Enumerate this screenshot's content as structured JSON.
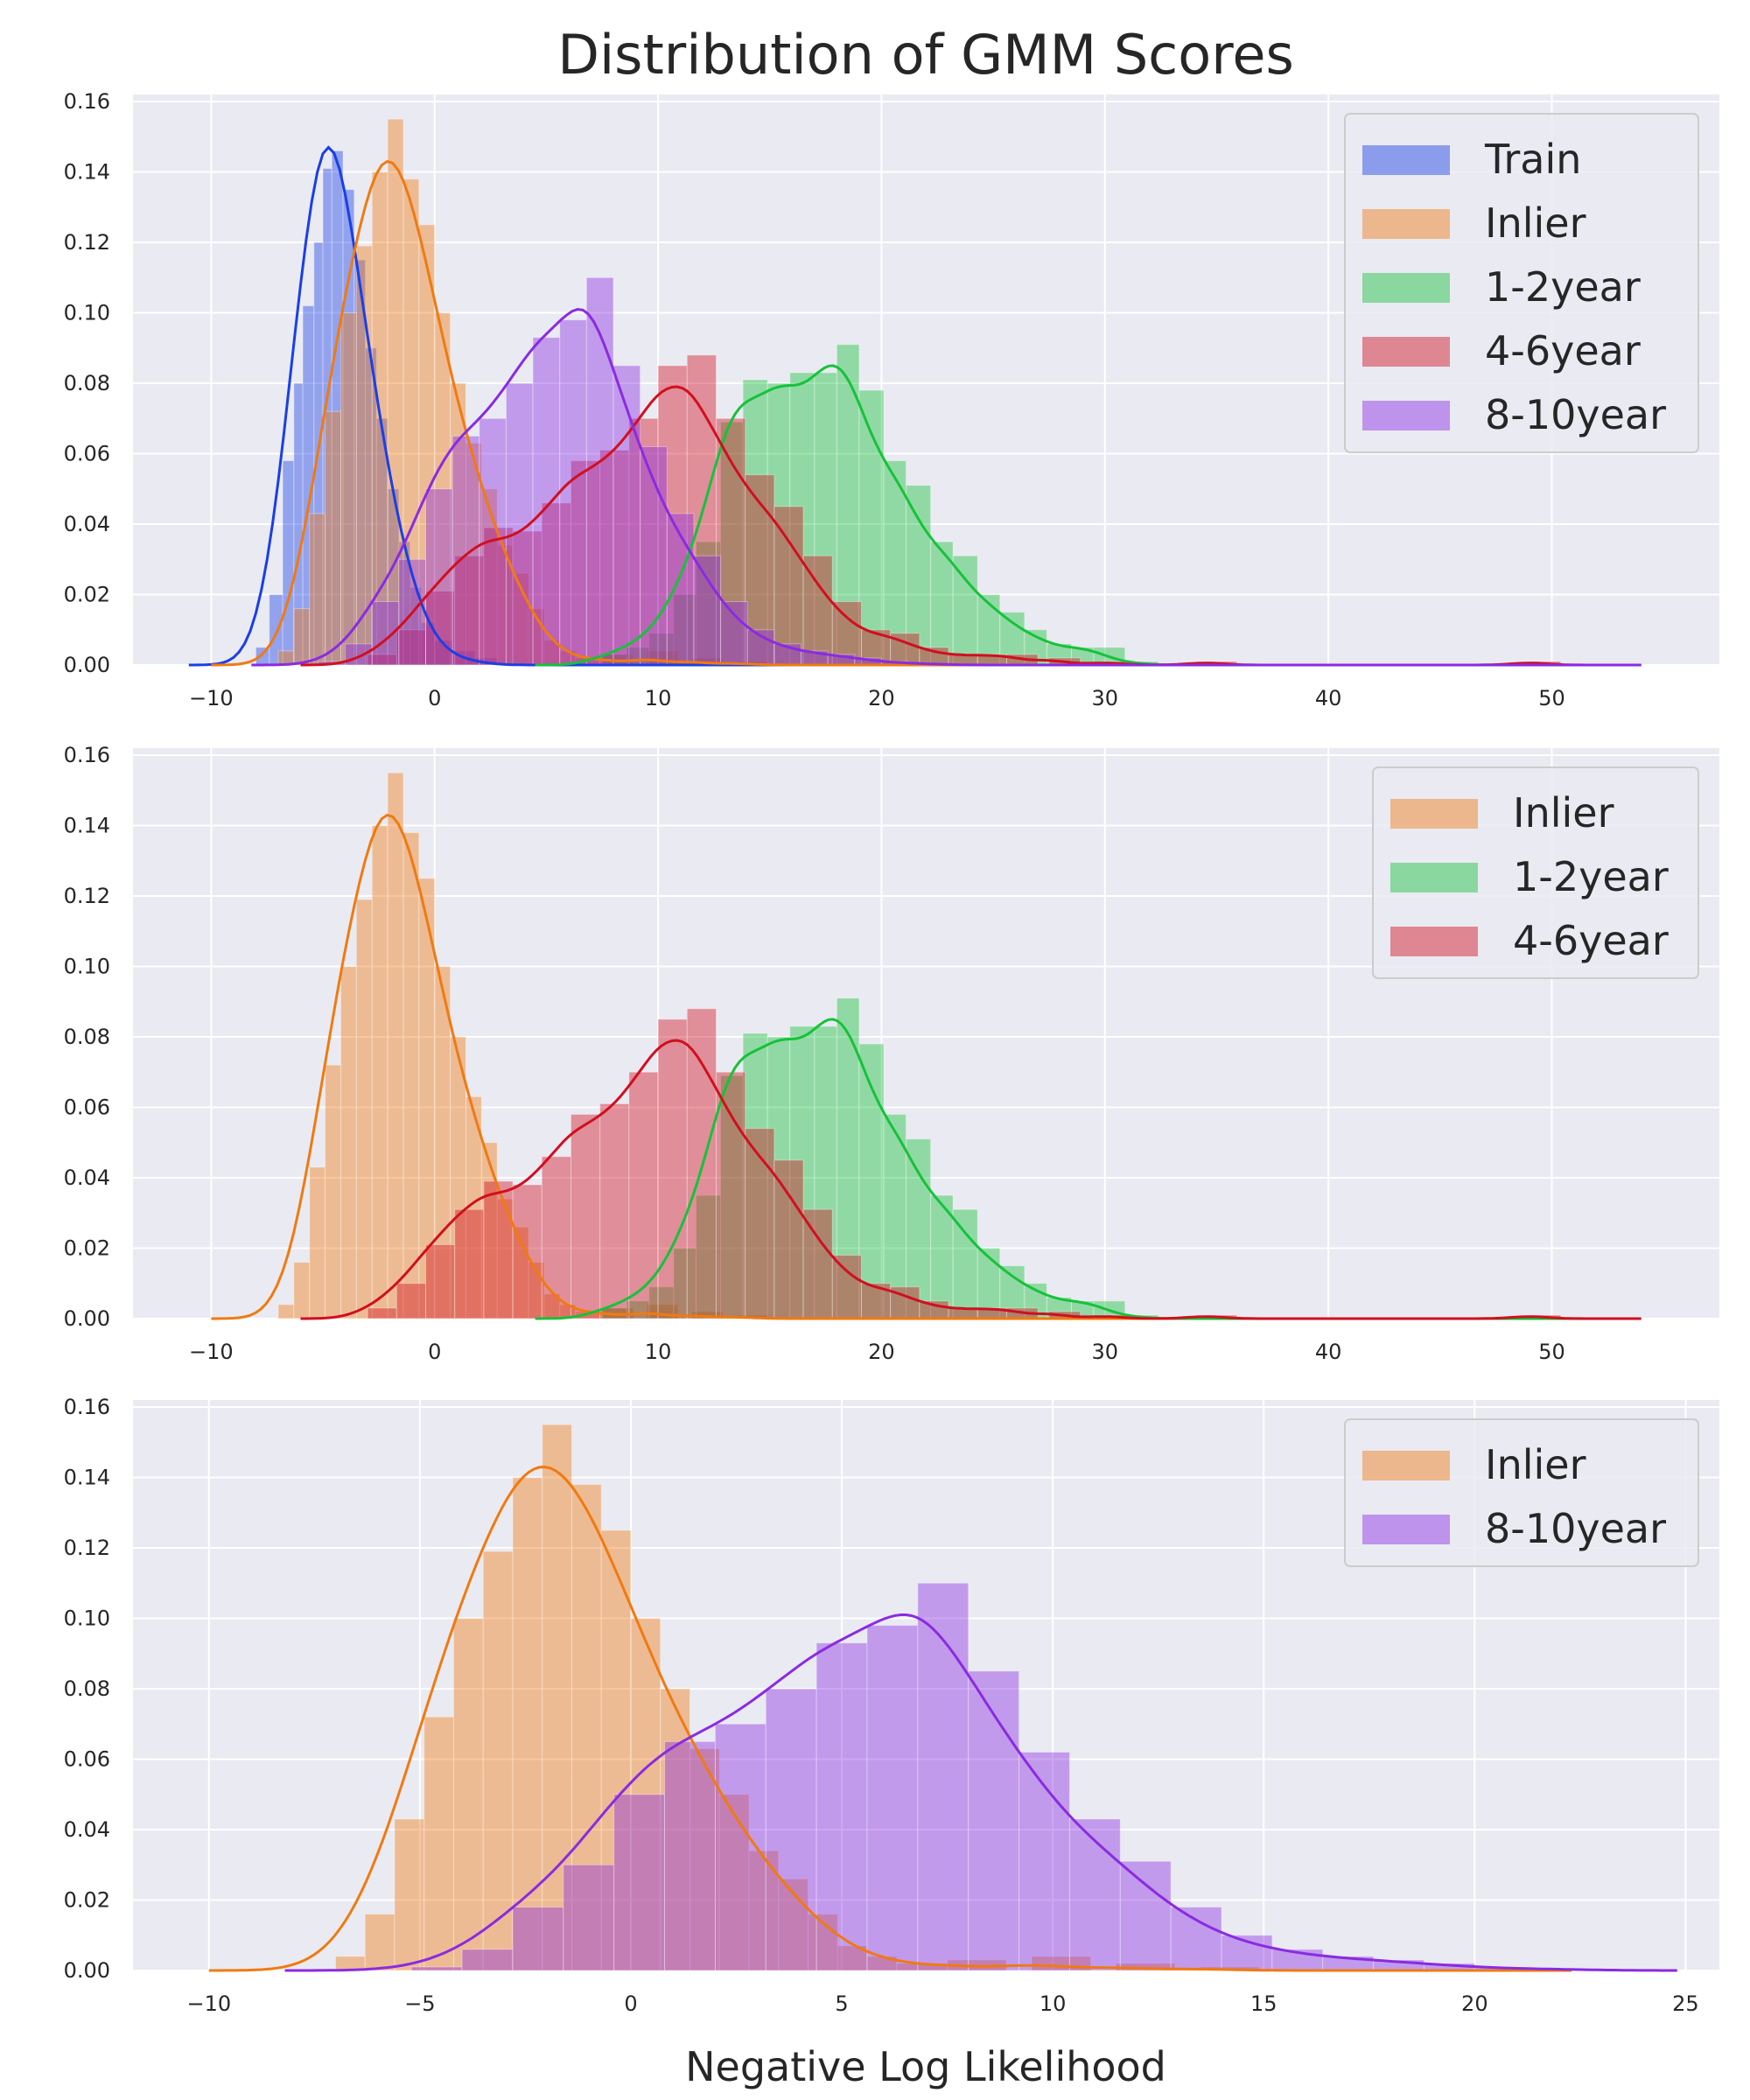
{
  "figure": {
    "title": "Distribution of GMM Scores",
    "xlabel": "Negative Log Likelihood"
  },
  "colors": {
    "background": "#eaeaf2",
    "grid": "#ffffff",
    "Train": "#1a3fe6",
    "Inlier": "#f07a10",
    "1-2year": "#16c23a",
    "4-6year": "#d10f1f",
    "8-10year": "#8a2be2"
  },
  "chart_data": [
    {
      "type": "histogram+kde",
      "xlim": [
        -13.5,
        57.5
      ],
      "ylim": [
        0,
        0.162
      ],
      "xticks": [
        "−10",
        "0",
        "10",
        "20",
        "30",
        "40",
        "50"
      ],
      "xtick_values": [
        -10,
        0,
        10,
        20,
        30,
        40,
        50
      ],
      "yticks": [
        "0.00",
        "0.02",
        "0.04",
        "0.06",
        "0.08",
        "0.10",
        "0.12",
        "0.14",
        "0.16"
      ],
      "ytick_values": [
        0,
        0.02,
        0.04,
        0.06,
        0.08,
        0.1,
        0.12,
        0.14,
        0.16
      ],
      "grid": true,
      "legend": {
        "position": "top-right",
        "entries": [
          "Train",
          "Inlier",
          "1-2year",
          "4-6year",
          "8-10year"
        ]
      },
      "series": [
        {
          "name": "Train",
          "kde_peak": [
            -4.1,
            0.147
          ],
          "hist_bins": [
            [
              -8.0,
              0.005
            ],
            [
              -7.4,
              0.02
            ],
            [
              -6.8,
              0.058
            ],
            [
              -6.3,
              0.08
            ],
            [
              -5.9,
              0.102
            ],
            [
              -5.4,
              0.12
            ],
            [
              -5.0,
              0.141
            ],
            [
              -4.6,
              0.146
            ],
            [
              -4.1,
              0.135
            ],
            [
              -3.6,
              0.115
            ],
            [
              -3.1,
              0.09
            ],
            [
              -2.6,
              0.07
            ],
            [
              -2.1,
              0.05
            ],
            [
              -1.6,
              0.035
            ],
            [
              -1.1,
              0.022
            ],
            [
              -0.6,
              0.012
            ],
            [
              0.0,
              0.007
            ],
            [
              0.8,
              0.004
            ],
            [
              1.8,
              0.002
            ]
          ]
        },
        {
          "name": "Inlier",
          "kde_peak": [
            -2.3,
            0.143
          ],
          "hist_bins": [
            [
              -7.0,
              0.004
            ],
            [
              -6.3,
              0.016
            ],
            [
              -5.6,
              0.043
            ],
            [
              -4.9,
              0.072
            ],
            [
              -4.2,
              0.1
            ],
            [
              -3.5,
              0.119
            ],
            [
              -2.8,
              0.14
            ],
            [
              -2.1,
              0.155
            ],
            [
              -1.4,
              0.138
            ],
            [
              -0.7,
              0.125
            ],
            [
              0.0,
              0.1
            ],
            [
              0.7,
              0.08
            ],
            [
              1.4,
              0.063
            ],
            [
              2.1,
              0.05
            ],
            [
              2.8,
              0.034
            ],
            [
              3.5,
              0.026
            ],
            [
              4.2,
              0.016
            ],
            [
              4.9,
              0.007
            ],
            [
              5.6,
              0.004
            ],
            [
              6.3,
              0.002
            ],
            [
              7.5,
              0.003
            ],
            [
              9.5,
              0.004
            ],
            [
              11.5,
              0.002
            ],
            [
              13.5,
              0.001
            ]
          ]
        },
        {
          "name": "1-2year",
          "kde_peak": [
            16.5,
            0.085
          ],
          "hist_bins": [
            [
              7.5,
              0.003
            ],
            [
              8.6,
              0.005
            ],
            [
              9.6,
              0.009
            ],
            [
              10.7,
              0.02
            ],
            [
              11.7,
              0.035
            ],
            [
              12.8,
              0.069
            ],
            [
              13.8,
              0.081
            ],
            [
              14.9,
              0.08
            ],
            [
              15.9,
              0.083
            ],
            [
              17.0,
              0.083
            ],
            [
              18.0,
              0.091
            ],
            [
              19.0,
              0.078
            ],
            [
              20.1,
              0.058
            ],
            [
              21.1,
              0.051
            ],
            [
              22.2,
              0.035
            ],
            [
              23.2,
              0.031
            ],
            [
              24.3,
              0.02
            ],
            [
              25.3,
              0.015
            ],
            [
              26.4,
              0.01
            ],
            [
              27.4,
              0.006
            ],
            [
              28.5,
              0.005
            ],
            [
              29.5,
              0.005
            ],
            [
              31.0,
              0.001
            ]
          ]
        },
        {
          "name": "4-6year",
          "kde_peak": [
            10.0,
            0.079
          ],
          "hist_bins": [
            [
              -3.0,
              0.003
            ],
            [
              -1.7,
              0.01
            ],
            [
              -0.4,
              0.021
            ],
            [
              0.9,
              0.031
            ],
            [
              2.2,
              0.039
            ],
            [
              3.5,
              0.038
            ],
            [
              4.8,
              0.046
            ],
            [
              6.1,
              0.058
            ],
            [
              7.4,
              0.061
            ],
            [
              8.7,
              0.07
            ],
            [
              10.0,
              0.085
            ],
            [
              11.3,
              0.088
            ],
            [
              12.6,
              0.07
            ],
            [
              13.9,
              0.054
            ],
            [
              15.2,
              0.045
            ],
            [
              16.5,
              0.031
            ],
            [
              17.8,
              0.018
            ],
            [
              19.1,
              0.01
            ],
            [
              20.4,
              0.009
            ],
            [
              21.7,
              0.005
            ],
            [
              23.0,
              0.003
            ],
            [
              24.3,
              0.003
            ],
            [
              25.6,
              0.003
            ],
            [
              27.5,
              0.002
            ],
            [
              30.0,
              0.001
            ],
            [
              34.5,
              0.001
            ],
            [
              49.0,
              0.001
            ]
          ]
        },
        {
          "name": "8-10year",
          "kde_peak": [
            5.8,
            0.101
          ],
          "hist_bins": [
            [
              -5.2,
              0.001
            ],
            [
              -4.0,
              0.006
            ],
            [
              -2.8,
              0.018
            ],
            [
              -1.6,
              0.03
            ],
            [
              -0.4,
              0.05
            ],
            [
              0.8,
              0.065
            ],
            [
              2.0,
              0.07
            ],
            [
              3.2,
              0.08
            ],
            [
              4.4,
              0.093
            ],
            [
              5.6,
              0.098
            ],
            [
              6.8,
              0.11
            ],
            [
              8.0,
              0.085
            ],
            [
              9.2,
              0.062
            ],
            [
              10.4,
              0.043
            ],
            [
              11.6,
              0.031
            ],
            [
              12.8,
              0.018
            ],
            [
              14.0,
              0.01
            ],
            [
              15.2,
              0.006
            ],
            [
              16.4,
              0.004
            ],
            [
              17.6,
              0.003
            ],
            [
              18.8,
              0.002
            ],
            [
              20.0,
              0.001
            ],
            [
              21.2,
              0.0005
            ],
            [
              22.4,
              0.0003
            ]
          ]
        }
      ]
    },
    {
      "type": "histogram+kde",
      "xlim": [
        -13.5,
        57.5
      ],
      "ylim": [
        0,
        0.162
      ],
      "xticks": [
        "−10",
        "0",
        "10",
        "20",
        "30",
        "40",
        "50"
      ],
      "xtick_values": [
        -10,
        0,
        10,
        20,
        30,
        40,
        50
      ],
      "yticks": [
        "0.00",
        "0.02",
        "0.04",
        "0.06",
        "0.08",
        "0.10",
        "0.12",
        "0.14",
        "0.16"
      ],
      "ytick_values": [
        0,
        0.02,
        0.04,
        0.06,
        0.08,
        0.1,
        0.12,
        0.14,
        0.16
      ],
      "grid": true,
      "legend": {
        "position": "top-right",
        "entries": [
          "Inlier",
          "1-2year",
          "4-6year"
        ]
      },
      "series_names": [
        "Inlier",
        "1-2year",
        "4-6year"
      ]
    },
    {
      "type": "histogram+kde",
      "xlim": [
        -11.8,
        25.8
      ],
      "ylim": [
        0,
        0.162
      ],
      "xticks": [
        "−10",
        "−5",
        "0",
        "5",
        "10",
        "15",
        "20",
        "25"
      ],
      "xtick_values": [
        -10,
        -5,
        0,
        5,
        10,
        15,
        20,
        25
      ],
      "yticks": [
        "0.00",
        "0.02",
        "0.04",
        "0.06",
        "0.08",
        "0.10",
        "0.12",
        "0.14",
        "0.16"
      ],
      "ytick_values": [
        0,
        0.02,
        0.04,
        0.06,
        0.08,
        0.1,
        0.12,
        0.14,
        0.16
      ],
      "grid": true,
      "legend": {
        "position": "top-right",
        "entries": [
          "Inlier",
          "8-10year"
        ]
      },
      "series_names": [
        "Inlier",
        "8-10year"
      ]
    }
  ]
}
